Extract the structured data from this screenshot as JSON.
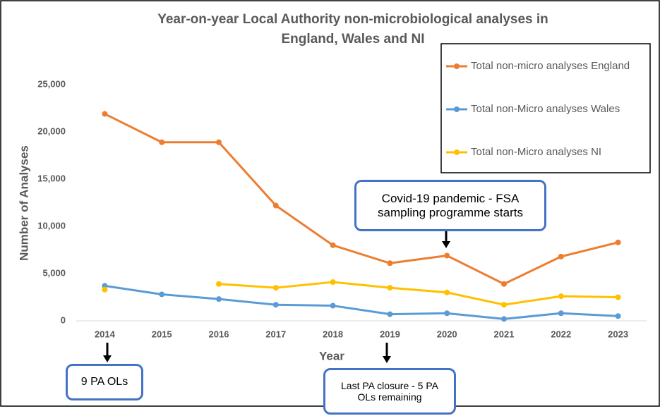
{
  "chart_data": {
    "type": "line",
    "title": "Year-on-year Local Authority non-microbiological analyses in England, Wales and NI",
    "x_label": "Year",
    "y_label": "Number of Analyses",
    "categories": [
      "2014",
      "2015",
      "2016",
      "2017",
      "2018",
      "2019",
      "2020",
      "2021",
      "2022",
      "2023"
    ],
    "series": [
      {
        "name": "Total non-micro analyses England",
        "color": "#ed7d31",
        "values": [
          21900,
          18900,
          18900,
          12200,
          8000,
          6100,
          6900,
          3900,
          6800,
          8300
        ]
      },
      {
        "name": "Total non-Micro analyses Wales",
        "color": "#5b9bd5",
        "values": [
          3700,
          2800,
          2300,
          1700,
          1600,
          700,
          800,
          200,
          800,
          500
        ]
      },
      {
        "name": "Total non-Micro analyses NI",
        "color": "#ffc000",
        "values": [
          3300,
          null,
          3900,
          3500,
          4100,
          3500,
          3000,
          1700,
          2600,
          2500
        ]
      }
    ],
    "ylim": [
      0,
      25000
    ],
    "yticks": [
      0,
      {
        "value": 5000,
        "label": "5,000"
      },
      {
        "value": 10000,
        "label": "10,000"
      },
      {
        "value": 15000,
        "label": "15,000"
      },
      {
        "value": 20000,
        "label": "20,000"
      },
      {
        "value": 25000,
        "label": "25,000"
      }
    ],
    "grid": false,
    "legend": "top-right",
    "annotations": [
      "Covid-19 pandemic - FSA sampling programme starts",
      "9 PA OLs",
      "Last PA closure - 5 PA OLs remaining"
    ]
  }
}
